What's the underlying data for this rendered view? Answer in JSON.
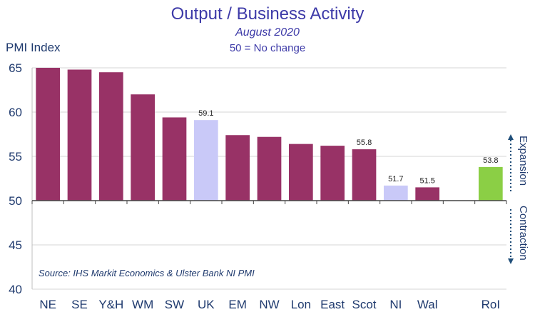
{
  "title": "Output / Business Activity",
  "subtitle": "August 2020",
  "note": "50 = No change",
  "ylabel": "PMI Index",
  "source": "Source: IHS Markit Economics & Ulster Bank NI PMI",
  "side_labels": {
    "expansion": "Expansion",
    "contraction": "Contraction"
  },
  "colors": {
    "regions": "#983266",
    "uk": "#c9c9f8",
    "ni": "#c9c9f8",
    "roi": "#8bcf45",
    "axis_text": "#1f3a6e",
    "title": "#3d3aa8",
    "arrows": "#1f4e79"
  },
  "chart_data": {
    "type": "bar",
    "categories": [
      "NE",
      "SE",
      "Y&H",
      "WM",
      "SW",
      "UK",
      "EM",
      "NW",
      "Lon",
      "East",
      "Scot",
      "NI",
      "Wal",
      "",
      "RoI"
    ],
    "values": [
      65.0,
      64.8,
      64.5,
      62.0,
      59.4,
      59.1,
      57.4,
      57.2,
      56.4,
      56.2,
      55.8,
      51.7,
      51.5,
      null,
      53.8
    ],
    "data_labels": [
      "",
      "",
      "",
      "",
      "",
      "59.1",
      "",
      "",
      "",
      "",
      "55.8",
      "51.7",
      "51.5",
      "",
      "53.8"
    ],
    "bar_colors": [
      "regions",
      "regions",
      "regions",
      "regions",
      "regions",
      "uk",
      "regions",
      "regions",
      "regions",
      "regions",
      "regions",
      "ni",
      "regions",
      "",
      "roi"
    ],
    "yticks": [
      40,
      45,
      50,
      55,
      60,
      65
    ],
    "ylim": [
      40,
      65
    ],
    "baseline": 50,
    "grid": true
  }
}
